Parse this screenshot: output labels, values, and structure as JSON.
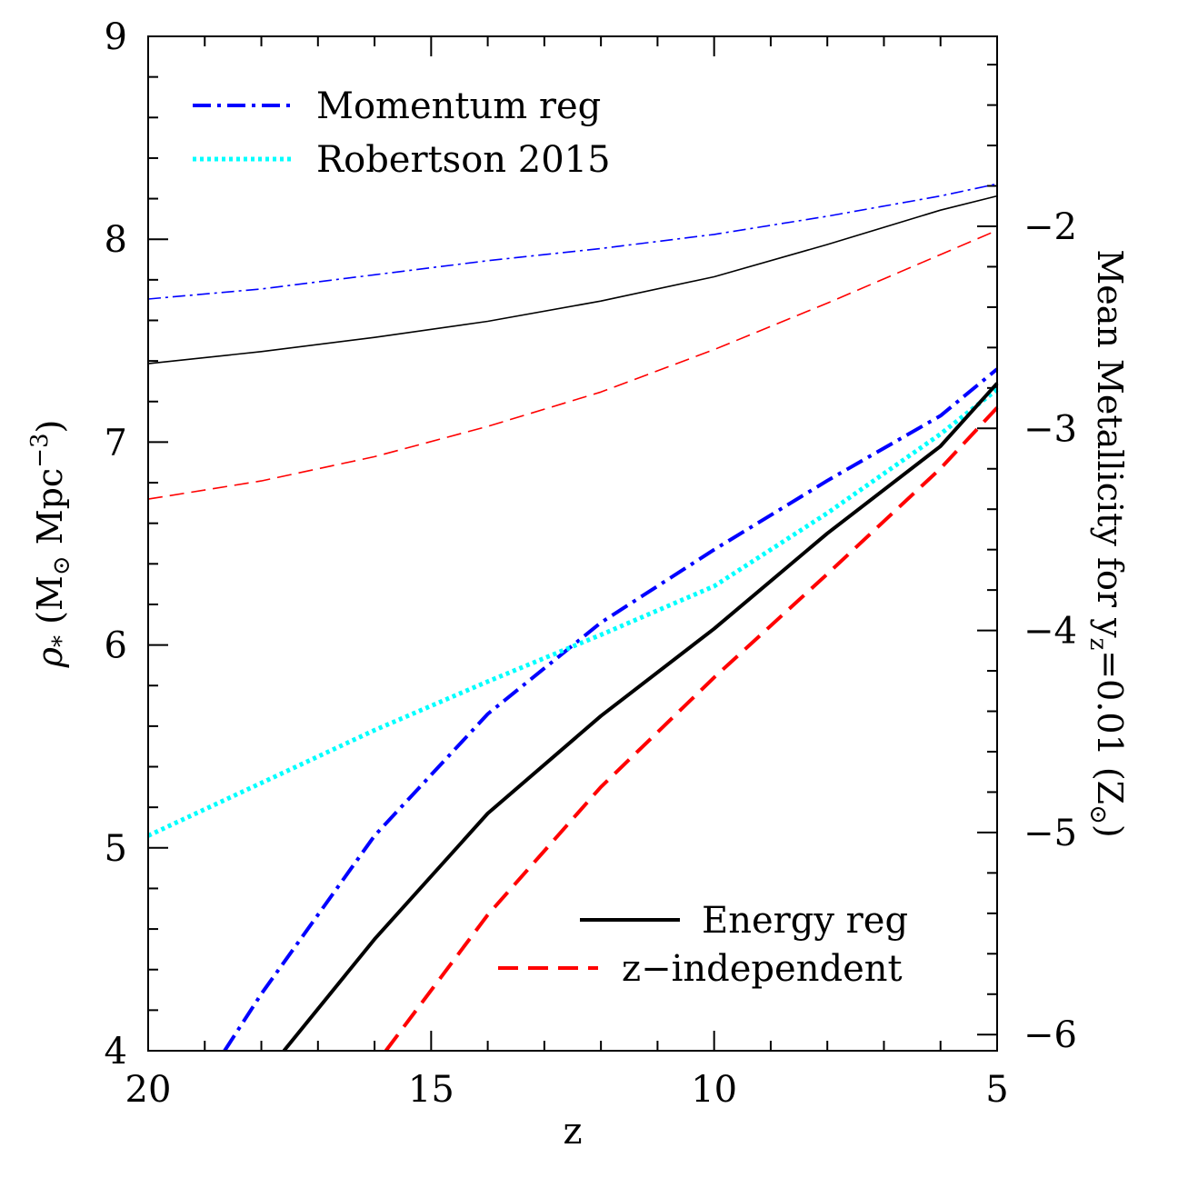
{
  "chart_data": {
    "type": "line",
    "xlabel": "z",
    "ylabel_left": "ρ* (M⊙ Mpc⁻³)",
    "ylabel_left_parts": {
      "rho": "ρ",
      "star": "*",
      "open": " (M",
      "sun": "⊙",
      "mpc": " Mpc",
      "exp": "−3",
      "close": ")"
    },
    "ylabel_right": "Mean Metallicity for yz=0.01 (Z⊙)",
    "ylabel_right_parts": {
      "main": "Mean Metallicity for y",
      "sub": "z",
      "eq": "=0.01 (Z",
      "sun": "⊙",
      "close": ")"
    },
    "xlim": [
      20,
      5
    ],
    "ylim_left": [
      4,
      9
    ],
    "ylim_right": [
      -6.08,
      -1.06
    ],
    "x_ticks": [
      20,
      15,
      10,
      5
    ],
    "x_tick_labels": [
      "20",
      "15",
      "10",
      "5"
    ],
    "y_left_ticks": [
      4,
      5,
      6,
      7,
      8,
      9
    ],
    "y_left_tick_labels": [
      "4",
      "5",
      "6",
      "7",
      "8",
      "9"
    ],
    "y_right_ticks": [
      -6,
      -5,
      -4,
      -3,
      -2
    ],
    "y_right_tick_labels": [
      "−6",
      "−5",
      "−4",
      "−3",
      "−2"
    ],
    "legend_top": {
      "placement": "top-left",
      "entries": [
        "Momentum reg",
        "Robertson 2015"
      ]
    },
    "legend_bottom": {
      "placement": "bottom-right",
      "entries": [
        "Energy reg",
        "z−independent"
      ]
    },
    "series": [
      {
        "name": "Momentum reg",
        "axis": "left",
        "color": "#0000ff",
        "style": "dash-dot",
        "weight": "thick",
        "x": [
          18.65,
          18,
          16,
          14,
          12,
          10,
          8,
          6,
          5
        ],
        "y": [
          4.0,
          4.28,
          5.06,
          5.66,
          6.11,
          6.47,
          6.81,
          7.13,
          7.36
        ]
      },
      {
        "name": "Robertson 2015",
        "axis": "left",
        "color": "#00ffff",
        "style": "dotted",
        "weight": "thick",
        "x": [
          20,
          18,
          16,
          14,
          12,
          10,
          8,
          6,
          5
        ],
        "y": [
          5.06,
          5.32,
          5.58,
          5.82,
          6.05,
          6.29,
          6.65,
          7.04,
          7.26
        ]
      },
      {
        "name": "Energy reg",
        "axis": "left",
        "color": "#000000",
        "style": "solid",
        "weight": "thick",
        "x": [
          17.6,
          16,
          14,
          12,
          10,
          8,
          6,
          5
        ],
        "y": [
          4.0,
          4.55,
          5.17,
          5.65,
          6.08,
          6.55,
          6.98,
          7.29
        ]
      },
      {
        "name": "z−independent",
        "axis": "left",
        "color": "#ff0000",
        "style": "dashed",
        "weight": "thick",
        "x": [
          15.8,
          14,
          12,
          10,
          8,
          6,
          5
        ],
        "y": [
          4.0,
          4.67,
          5.3,
          5.84,
          6.35,
          6.87,
          7.17
        ]
      },
      {
        "name": "Momentum reg",
        "axis": "right",
        "color": "#0000ff",
        "style": "dash-dot",
        "weight": "thin",
        "x": [
          20,
          18,
          16,
          14,
          12,
          10,
          8,
          6,
          5
        ],
        "y": [
          -2.36,
          -2.31,
          -2.24,
          -2.17,
          -2.11,
          -2.04,
          -1.95,
          -1.85,
          -1.79
        ]
      },
      {
        "name": "Energy reg",
        "axis": "right",
        "color": "#000000",
        "style": "solid",
        "weight": "thin",
        "x": [
          20,
          18,
          16,
          14,
          12,
          10,
          8,
          6,
          5
        ],
        "y": [
          -2.68,
          -2.62,
          -2.55,
          -2.47,
          -2.37,
          -2.25,
          -2.09,
          -1.92,
          -1.85
        ]
      },
      {
        "name": "z−independent",
        "axis": "right",
        "color": "#ff0000",
        "style": "dashed",
        "weight": "thin",
        "x": [
          20,
          18,
          16,
          14,
          12,
          10,
          8,
          6,
          5
        ],
        "y": [
          -3.35,
          -3.26,
          -3.14,
          -2.99,
          -2.82,
          -2.61,
          -2.38,
          -2.14,
          -2.02
        ]
      }
    ]
  }
}
